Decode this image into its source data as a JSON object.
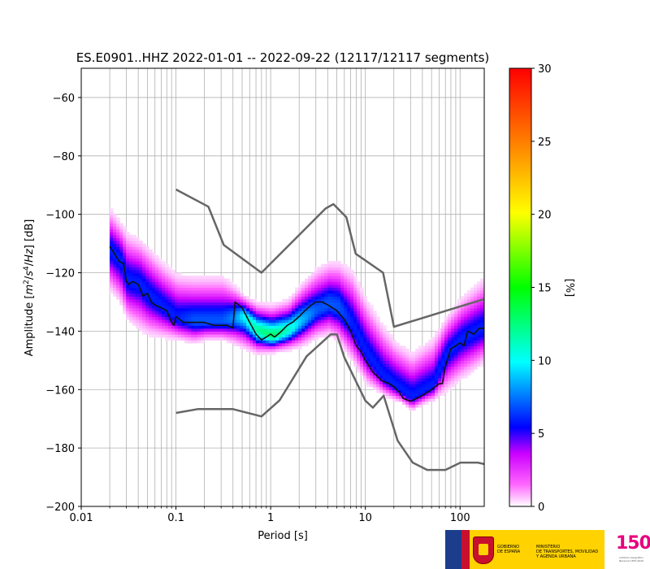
{
  "chart_data": {
    "type": "heatmap",
    "title": "ES.E0901..HHZ   2022-01-01 -- 2022-09-22  (12117/12117 segments)",
    "xlabel": "Period [s]",
    "ylabel": "Amplitude [m²/s⁴/Hz] [dB]",
    "x_scale": "log",
    "xlim": [
      0.01,
      180
    ],
    "ylim": [
      -200,
      -50
    ],
    "x_ticks": [
      0.01,
      0.1,
      1,
      10,
      100
    ],
    "x_tick_labels": [
      "0.01",
      "0.1",
      "1",
      "10",
      "100"
    ],
    "y_ticks": [
      -200,
      -180,
      -160,
      -140,
      -120,
      -100,
      -80,
      -60
    ],
    "y_tick_labels": [
      "−200",
      "−180",
      "−160",
      "−140",
      "−120",
      "−100",
      "−80",
      "−60"
    ],
    "grid": true,
    "colorbar": {
      "label": "[%]",
      "range": [
        0,
        30
      ],
      "ticks": [
        0,
        5,
        10,
        15,
        20,
        25,
        30
      ],
      "tick_labels": [
        "0",
        "5",
        "10",
        "15",
        "20",
        "25",
        "30"
      ]
    },
    "psd_band": [
      {
        "period": 0.02,
        "mode": -113,
        "lower": -126,
        "upper": -100,
        "peak": 6
      },
      {
        "period": 0.025,
        "mode": -116,
        "lower": -130,
        "upper": -104,
        "peak": 6
      },
      {
        "period": 0.03,
        "mode": -123,
        "lower": -136,
        "upper": -108,
        "peak": 6
      },
      {
        "period": 0.04,
        "mode": -124,
        "lower": -139,
        "upper": -110,
        "peak": 6
      },
      {
        "period": 0.05,
        "mode": -128,
        "lower": -141,
        "upper": -113,
        "peak": 6
      },
      {
        "period": 0.07,
        "mode": -132,
        "lower": -142,
        "upper": -118,
        "peak": 6
      },
      {
        "period": 0.1,
        "mode": -136,
        "lower": -143,
        "upper": -122,
        "peak": 6
      },
      {
        "period": 0.15,
        "mode": -137,
        "lower": -144,
        "upper": -123,
        "peak": 7
      },
      {
        "period": 0.2,
        "mode": -137,
        "lower": -143,
        "upper": -123,
        "peak": 7
      },
      {
        "period": 0.3,
        "mode": -137,
        "lower": -143,
        "upper": -123,
        "peak": 7
      },
      {
        "period": 0.4,
        "mode": -136,
        "lower": -144,
        "upper": -126,
        "peak": 8
      },
      {
        "period": 0.5,
        "mode": -135,
        "lower": -145,
        "upper": -129,
        "peak": 10
      },
      {
        "period": 0.7,
        "mode": -140,
        "lower": -147,
        "upper": -132,
        "peak": 12
      },
      {
        "period": 1.0,
        "mode": -142,
        "lower": -147,
        "upper": -133,
        "peak": 13
      },
      {
        "period": 1.5,
        "mode": -140,
        "lower": -146,
        "upper": -131,
        "peak": 11
      },
      {
        "period": 2.0,
        "mode": -137,
        "lower": -145,
        "upper": -126,
        "peak": 9
      },
      {
        "period": 3.0,
        "mode": -133,
        "lower": -142,
        "upper": -120,
        "peak": 7
      },
      {
        "period": 4.0,
        "mode": -131,
        "lower": -141,
        "upper": -118,
        "peak": 7
      },
      {
        "period": 5.0,
        "mode": -132,
        "lower": -143,
        "upper": -118,
        "peak": 7
      },
      {
        "period": 7.0,
        "mode": -138,
        "lower": -150,
        "upper": -121,
        "peak": 6
      },
      {
        "period": 10.0,
        "mode": -148,
        "lower": -158,
        "upper": -131,
        "peak": 6
      },
      {
        "period": 15.0,
        "mode": -156,
        "lower": -162,
        "upper": -140,
        "peak": 6
      },
      {
        "period": 20.0,
        "mode": -159,
        "lower": -164,
        "upper": -145,
        "peak": 6
      },
      {
        "period": 30.0,
        "mode": -163,
        "lower": -166,
        "upper": -149,
        "peak": 6
      },
      {
        "period": 50.0,
        "mode": -159,
        "lower": -164,
        "upper": -144,
        "peak": 6
      },
      {
        "period": 70.0,
        "mode": -148,
        "lower": -160,
        "upper": -136,
        "peak": 6
      },
      {
        "period": 100.0,
        "mode": -143,
        "lower": -156,
        "upper": -130,
        "peak": 6
      },
      {
        "period": 150.0,
        "mode": -140,
        "lower": -152,
        "upper": -125,
        "peak": 6
      },
      {
        "period": 180.0,
        "mode": -139,
        "lower": -150,
        "upper": -123,
        "peak": 6
      }
    ],
    "mode_curve": {
      "x": [
        0.02,
        0.022,
        0.025,
        0.028,
        0.03,
        0.032,
        0.035,
        0.04,
        0.045,
        0.05,
        0.055,
        0.06,
        0.07,
        0.08,
        0.09,
        0.095,
        0.1,
        0.12,
        0.15,
        0.2,
        0.25,
        0.3,
        0.35,
        0.4,
        0.42,
        0.5,
        0.6,
        0.7,
        0.8,
        0.9,
        1.0,
        1.1,
        1.2,
        1.3,
        1.5,
        1.7,
        2.0,
        2.3,
        2.7,
        3.0,
        3.5,
        4.0,
        5.0,
        6.0,
        7.0,
        8.0,
        9.0,
        10.0,
        12.0,
        15.0,
        18.0,
        20.0,
        23.0,
        25.0,
        30.0,
        35.0,
        40.0,
        50.0,
        60.0,
        65.0,
        70.0,
        80.0,
        90.0,
        100.0,
        110.0,
        120.0,
        140.0,
        160.0,
        180.0
      ],
      "y": [
        -111,
        -113,
        -116,
        -117,
        -123,
        -124,
        -123,
        -124,
        -128,
        -127,
        -130,
        -131,
        -132,
        -133,
        -137,
        -138,
        -135,
        -137,
        -137,
        -137,
        -138,
        -138,
        -138,
        -139,
        -130,
        -132,
        -137,
        -141,
        -143,
        -142,
        -141,
        -142,
        -141,
        -140,
        -138,
        -137,
        -135,
        -133,
        -131,
        -130,
        -130,
        -131,
        -133,
        -136,
        -140,
        -145,
        -147,
        -150,
        -154,
        -157,
        -158,
        -159,
        -161,
        -163,
        -164,
        -163,
        -162,
        -160,
        -158,
        -158,
        -152,
        -146,
        -145,
        -144,
        -145,
        -140,
        -141,
        -139,
        -139
      ]
    },
    "nhnm": {
      "x": [
        0.1,
        0.22,
        0.32,
        0.8,
        3.8,
        4.6,
        6.3,
        7.9,
        15.4,
        20.0,
        180.0
      ],
      "y": [
        -91.5,
        -97.4,
        -110.5,
        -120.0,
        -98.0,
        -96.5,
        -101.0,
        -113.5,
        -120.0,
        -138.5,
        -129.0
      ]
    },
    "nlnm": {
      "x": [
        0.1,
        0.17,
        0.4,
        0.8,
        1.24,
        2.4,
        4.3,
        5.0,
        6.0,
        10.0,
        12.0,
        15.6,
        21.9,
        31.6,
        45.0,
        70.0,
        101.0,
        154.0,
        180.0
      ],
      "y": [
        -168.0,
        -166.7,
        -166.7,
        -169.2,
        -163.7,
        -148.6,
        -141.1,
        -141.1,
        -149.0,
        -163.8,
        -166.2,
        -162.1,
        -177.5,
        -185.0,
        -187.5,
        -187.5,
        -185.0,
        -185.0,
        -185.5
      ]
    }
  },
  "logos": {
    "gov_text_1": "GOBIERNO\nDE ESPAÑA",
    "gov_text_2": "MINISTERIO\nDE TRANSPORTES, MOVILIDAD\nY AGENDA URBANA",
    "ign_number": "150",
    "ign_caption": "Instituto Geográfico\nNacional 1870-2020"
  }
}
